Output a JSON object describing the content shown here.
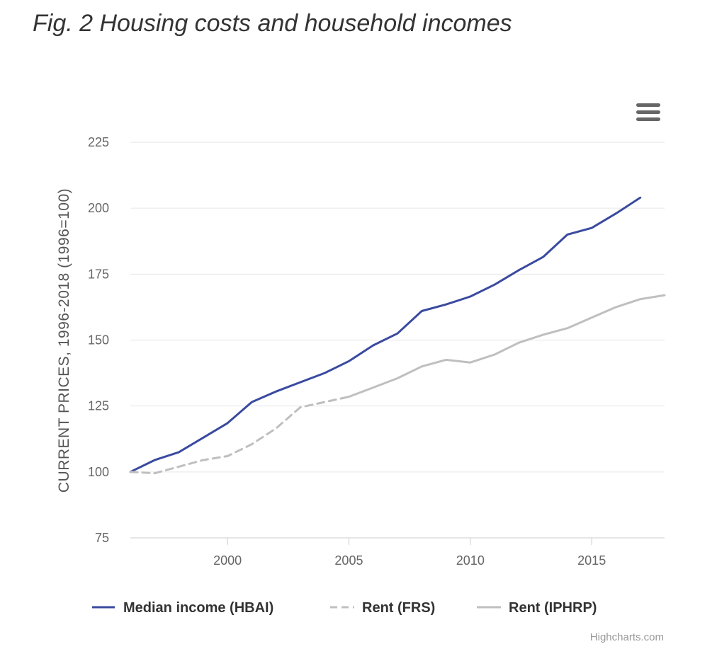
{
  "title": "Fig. 2 Housing costs and household incomes",
  "credits": "Highcharts.com",
  "menu_icon": "hamburger-menu-icon",
  "colors": {
    "median_income": "#3a4a9f",
    "rent_frs": "#bfbfbf",
    "rent_iphrp": "#bfbfbf",
    "grid": "#e6e6e6"
  },
  "chart_data": {
    "type": "line",
    "title": "Fig. 2 Housing costs and household incomes",
    "xlabel": "",
    "ylabel": "CURRENT PRICES, 1996-2018 (1996=100)",
    "ylim": [
      75,
      225
    ],
    "xlim": [
      1996,
      2018
    ],
    "yticks": [
      "75",
      "100",
      "125",
      "150",
      "175",
      "200",
      "225"
    ],
    "xticks": [
      "2000",
      "2005",
      "2010",
      "2015"
    ],
    "grid": true,
    "legend_position": "bottom-center",
    "series": [
      {
        "name": "Median income (HBAI)",
        "style": "solid",
        "x": [
          1996,
          1997,
          1998,
          1999,
          2000,
          2001,
          2002,
          2003,
          2004,
          2005,
          2006,
          2007,
          2008,
          2009,
          2010,
          2011,
          2012,
          2013,
          2014,
          2015,
          2016,
          2017
        ],
        "y": [
          100,
          104.5,
          107.5,
          113,
          118.5,
          126.5,
          130.5,
          134,
          137.5,
          142,
          148,
          152.5,
          161,
          163.5,
          166.5,
          171,
          176.5,
          181.5,
          190,
          192.5,
          198,
          204
        ]
      },
      {
        "name": "Rent (FRS)",
        "style": "dashed",
        "x": [
          1996,
          1997,
          1998,
          1999,
          2000,
          2001,
          2002,
          2003,
          2004,
          2005
        ],
        "y": [
          100,
          99.5,
          102,
          104.5,
          106,
          110.5,
          116.5,
          124.5,
          126.5,
          128.5
        ]
      },
      {
        "name": "Rent (IPHRP)",
        "style": "solid",
        "x": [
          2005,
          2006,
          2007,
          2008,
          2009,
          2010,
          2011,
          2012,
          2013,
          2014,
          2015,
          2016,
          2017,
          2018
        ],
        "y": [
          128.5,
          132,
          135.5,
          140,
          142.5,
          141.5,
          144.5,
          149,
          152,
          154.5,
          158.5,
          162.5,
          165.5,
          167
        ]
      }
    ]
  }
}
